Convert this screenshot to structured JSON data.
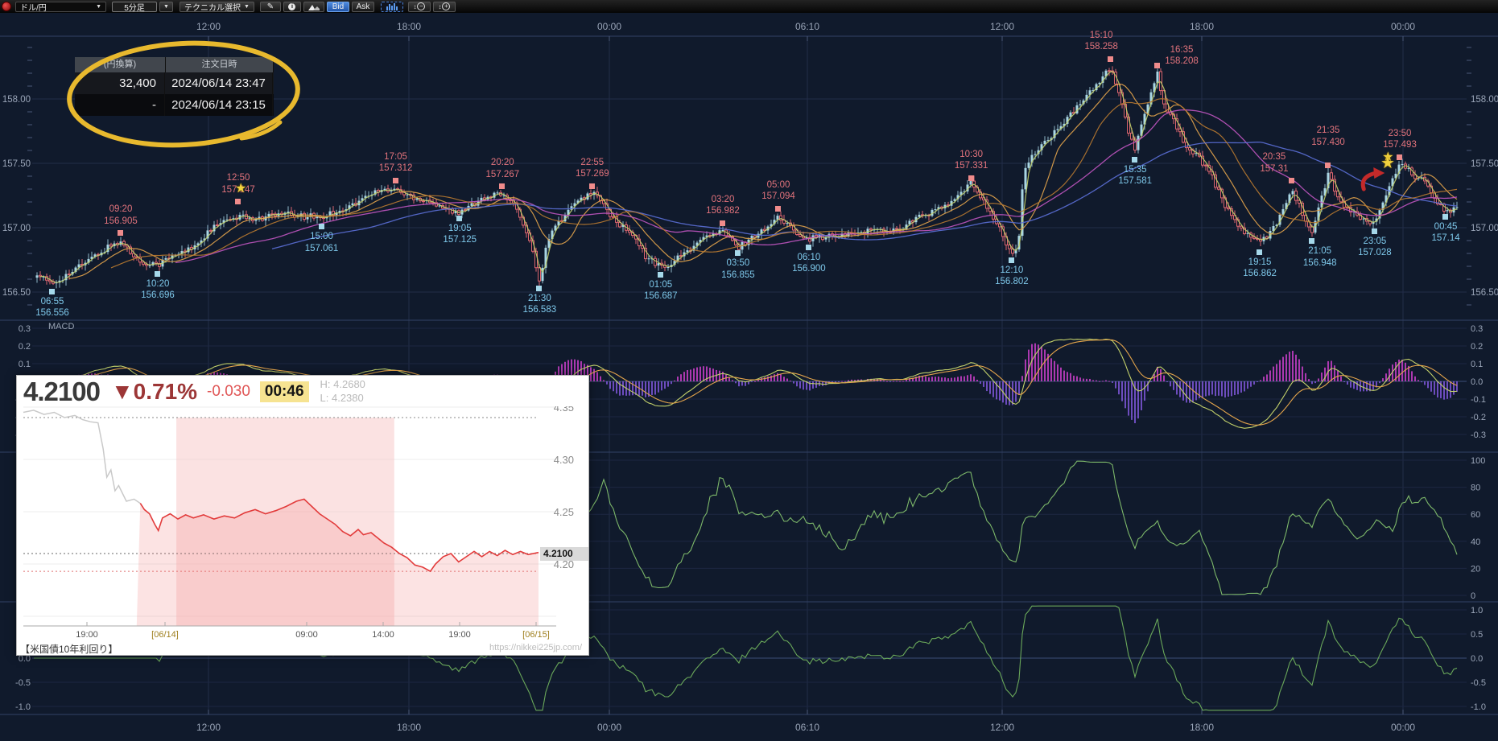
{
  "toolbar": {
    "pair_selector": "ドル/円",
    "timeframe": "5分足",
    "technical_button": "テクニカル選択",
    "bid_label": "Bid",
    "ask_label": "Ask",
    "icons": [
      "record-icon",
      "dropdown-arrow-icon",
      "pencil-icon",
      "info-icon",
      "area-chart-icon",
      "volume-bars-icon",
      "zoom-out-icon",
      "zoom-in-icon"
    ]
  },
  "order_panel": {
    "col1_header": "(円換算)",
    "col2_header": "注文日時",
    "rows": [
      {
        "amount": "32,400",
        "datetime": "2024/06/14 23:47"
      },
      {
        "amount": "-",
        "datetime": "2024/06/14 23:15"
      }
    ]
  },
  "panels": {
    "macd_label": "MACD",
    "time_labels": [
      "12:00",
      "18:00",
      "00:00",
      "06:10",
      "12:00",
      "18:00",
      "00:00"
    ],
    "main_price_ticks": [
      "158.00",
      "157.50",
      "157.00",
      "156.50"
    ],
    "macd_ticks": [
      "0.3",
      "0.2",
      "0.1",
      "0.0",
      "-0.1",
      "-0.2",
      "-0.3"
    ],
    "rsi_ticks": [
      "100",
      "80",
      "60",
      "40",
      "20",
      "0"
    ],
    "osc_ticks": [
      "1.0",
      "0.5",
      "0.0",
      "-0.5",
      "-1.0"
    ]
  },
  "colors": {
    "background": "#101a2c",
    "grid": "#222d49",
    "candle_up": "#a9d6e4",
    "candle_down": "#dd6670",
    "anno_high": "#e2737c",
    "anno_low": "#7ec8ea",
    "ma_fast": "#c2d06a",
    "ma_mid": "#e3a44b",
    "ma_slow_magenta": "#c055c0",
    "ma_slow_blue": "#5b6fd6",
    "ma_slow_brown": "#b97a30",
    "hist_pos": "#c840c8",
    "hist_neg": "#7e57d8",
    "osc_green": "#6aa85a",
    "scribble_yellow": "#e8b92e",
    "inset_red": "#e23b3b"
  },
  "chart_data": [
    {
      "type": "candlestick",
      "title": "ドル/円 5分足",
      "x_axis_labels": [
        "12:00",
        "18:00",
        "00:00",
        "06:10",
        "12:00",
        "18:00",
        "00:00"
      ],
      "y_axis_labels": [
        "158.00",
        "157.50",
        "157.00",
        "156.50"
      ],
      "ylim": [
        156.4,
        158.45
      ],
      "annotations": [
        {
          "t": "06:55",
          "v": "156.556",
          "side": "low",
          "f": 0.013
        },
        {
          "t": "09:20",
          "v": "156.905",
          "side": "high",
          "f": 0.061
        },
        {
          "t": "10:20",
          "v": "156.696",
          "side": "low",
          "f": 0.087
        },
        {
          "t": "12:50",
          "v": "157.147",
          "side": "high",
          "f": 0.1435,
          "star": true
        },
        {
          "t": "15:00",
          "v": "157.061",
          "side": "low",
          "f": 0.202
        },
        {
          "t": "17:05",
          "v": "157.312",
          "side": "high",
          "f": 0.254
        },
        {
          "t": "19:05",
          "v": "157.125",
          "side": "low",
          "f": 0.299
        },
        {
          "t": "20:20",
          "v": "157.267",
          "side": "high",
          "f": 0.329
        },
        {
          "t": "21:30",
          "v": "156.583",
          "side": "low",
          "f": 0.355
        },
        {
          "t": "22:55",
          "v": "157.269",
          "side": "high",
          "f": 0.392
        },
        {
          "t": "01:05",
          "v": "156.687",
          "side": "low",
          "f": 0.44
        },
        {
          "t": "03:20",
          "v": "156.982",
          "side": "high",
          "f": 0.4836
        },
        {
          "t": "03:50",
          "v": "156.855",
          "side": "low",
          "f": 0.4943
        },
        {
          "t": "05:00",
          "v": "157.094",
          "side": "high",
          "f": 0.5226
        },
        {
          "t": "06:10",
          "v": "156.900",
          "side": "low",
          "f": 0.544
        },
        {
          "t": "10:30",
          "v": "157.331",
          "side": "high",
          "f": 0.658
        },
        {
          "t": "12:10",
          "v": "156.802",
          "side": "low",
          "f": 0.6864
        },
        {
          "t": "15:10",
          "v": "158.258",
          "side": "high",
          "f": 0.756,
          "dx": -12
        },
        {
          "t": "15:35",
          "v": "157.581",
          "side": "low",
          "f": 0.773
        },
        {
          "t": "16:35",
          "v": "158.208",
          "side": "high",
          "f": 0.7887,
          "dx": 30,
          "dy": 10
        },
        {
          "t": "19:15",
          "v": "156.862",
          "side": "low",
          "f": 0.8605
        },
        {
          "t": "20:35",
          "v": "157.31",
          "side": "high",
          "f": 0.883,
          "dx": -22
        },
        {
          "t": "21:05",
          "v": "156.948",
          "side": "low",
          "f": 0.897,
          "dx": 10
        },
        {
          "t": "21:35",
          "v": "157.430",
          "side": "high",
          "f": 0.9085,
          "dy": -14
        },
        {
          "t": "23:05",
          "v": "157.028",
          "side": "low",
          "f": 0.9412
        },
        {
          "t": "23:50",
          "v": "157.493",
          "side": "high",
          "f": 0.9588,
          "star_left": true
        },
        {
          "t": "00:45",
          "v": "157.14",
          "side": "low",
          "f": 0.991
        }
      ],
      "path": [
        [
          0.0,
          156.62
        ],
        [
          0.013,
          156.556
        ],
        [
          0.03,
          156.7
        ],
        [
          0.045,
          156.78
        ],
        [
          0.061,
          156.905
        ],
        [
          0.075,
          156.74
        ],
        [
          0.087,
          156.696
        ],
        [
          0.1,
          156.8
        ],
        [
          0.115,
          156.88
        ],
        [
          0.13,
          157.02
        ],
        [
          0.1435,
          157.1
        ],
        [
          0.16,
          157.06
        ],
        [
          0.18,
          157.12
        ],
        [
          0.202,
          157.061
        ],
        [
          0.215,
          157.15
        ],
        [
          0.23,
          157.22
        ],
        [
          0.245,
          157.28
        ],
        [
          0.254,
          157.312
        ],
        [
          0.265,
          157.25
        ],
        [
          0.28,
          157.18
        ],
        [
          0.299,
          157.125
        ],
        [
          0.315,
          157.22
        ],
        [
          0.329,
          157.267
        ],
        [
          0.34,
          157.15
        ],
        [
          0.348,
          156.9
        ],
        [
          0.355,
          156.583
        ],
        [
          0.362,
          156.95
        ],
        [
          0.375,
          157.15
        ],
        [
          0.392,
          157.269
        ],
        [
          0.405,
          157.1
        ],
        [
          0.42,
          156.95
        ],
        [
          0.43,
          156.75
        ],
        [
          0.44,
          156.687
        ],
        [
          0.455,
          156.8
        ],
        [
          0.47,
          156.9
        ],
        [
          0.4836,
          156.982
        ],
        [
          0.4943,
          156.855
        ],
        [
          0.51,
          156.95
        ],
        [
          0.5226,
          157.094
        ],
        [
          0.535,
          156.98
        ],
        [
          0.544,
          156.9
        ],
        [
          0.565,
          156.95
        ],
        [
          0.585,
          156.96
        ],
        [
          0.605,
          157.0
        ],
        [
          0.625,
          157.08
        ],
        [
          0.64,
          157.18
        ],
        [
          0.658,
          157.331
        ],
        [
          0.67,
          157.15
        ],
        [
          0.6805,
          156.95
        ],
        [
          0.6864,
          156.802
        ],
        [
          0.691,
          156.85
        ],
        [
          0.695,
          157.45
        ],
        [
          0.705,
          157.6
        ],
        [
          0.72,
          157.8
        ],
        [
          0.735,
          157.95
        ],
        [
          0.745,
          158.1
        ],
        [
          0.756,
          158.258
        ],
        [
          0.762,
          158.05
        ],
        [
          0.768,
          157.75
        ],
        [
          0.773,
          157.581
        ],
        [
          0.78,
          157.9
        ],
        [
          0.7887,
          158.208
        ],
        [
          0.794,
          157.95
        ],
        [
          0.8,
          157.85
        ],
        [
          0.81,
          157.6
        ],
        [
          0.825,
          157.45
        ],
        [
          0.84,
          157.1
        ],
        [
          0.85,
          156.95
        ],
        [
          0.8605,
          156.862
        ],
        [
          0.872,
          157.05
        ],
        [
          0.883,
          157.31
        ],
        [
          0.89,
          157.1
        ],
        [
          0.897,
          156.948
        ],
        [
          0.903,
          157.2
        ],
        [
          0.9085,
          157.43
        ],
        [
          0.915,
          157.25
        ],
        [
          0.925,
          157.1
        ],
        [
          0.933,
          157.05
        ],
        [
          0.9412,
          157.028
        ],
        [
          0.948,
          157.25
        ],
        [
          0.9588,
          157.493
        ],
        [
          0.968,
          157.4
        ],
        [
          0.975,
          157.35
        ],
        [
          0.983,
          157.25
        ],
        [
          0.991,
          157.14
        ],
        [
          1.0,
          157.16
        ]
      ],
      "decorations": [
        {
          "type": "star",
          "f": 0.9497,
          "price": 157.51
        },
        {
          "type": "curved-arrow",
          "f": 0.938,
          "price": 157.4
        }
      ]
    },
    {
      "type": "area-line",
      "title": "【米国債10年利回り】",
      "watermark": "https://nikkei225jp.com/",
      "last": "4.2100",
      "change_pct": "▼0.71%",
      "change": "-0.030",
      "time": "00:46",
      "high": "H: 4.2680",
      "low": "L: 4.2380",
      "price_tag": "4.2100",
      "y_ticks": [
        "4.35",
        "4.30",
        "4.25",
        "4.20"
      ],
      "x_ticks": [
        "19:00",
        "[06/14]",
        "09:00",
        "14:00",
        "19:00",
        "[06/15]"
      ],
      "gray_until": 0.23,
      "band": [
        0.297,
        0.72
      ],
      "points": [
        [
          0.0,
          4.345
        ],
        [
          0.02,
          4.347
        ],
        [
          0.04,
          4.343
        ],
        [
          0.06,
          4.345
        ],
        [
          0.08,
          4.34
        ],
        [
          0.1,
          4.342
        ],
        [
          0.115,
          4.338
        ],
        [
          0.13,
          4.336
        ],
        [
          0.145,
          4.335
        ],
        [
          0.155,
          4.31
        ],
        [
          0.162,
          4.283
        ],
        [
          0.17,
          4.29
        ],
        [
          0.178,
          4.27
        ],
        [
          0.185,
          4.275
        ],
        [
          0.2,
          4.26
        ],
        [
          0.215,
          4.262
        ],
        [
          0.227,
          4.258
        ],
        [
          0.235,
          4.252
        ],
        [
          0.245,
          4.248
        ],
        [
          0.255,
          4.238
        ],
        [
          0.262,
          4.232
        ],
        [
          0.27,
          4.244
        ],
        [
          0.285,
          4.248
        ],
        [
          0.3,
          4.243
        ],
        [
          0.315,
          4.247
        ],
        [
          0.33,
          4.244
        ],
        [
          0.35,
          4.247
        ],
        [
          0.37,
          4.243
        ],
        [
          0.39,
          4.246
        ],
        [
          0.41,
          4.244
        ],
        [
          0.43,
          4.249
        ],
        [
          0.45,
          4.252
        ],
        [
          0.47,
          4.248
        ],
        [
          0.49,
          4.251
        ],
        [
          0.51,
          4.255
        ],
        [
          0.53,
          4.26
        ],
        [
          0.545,
          4.262
        ],
        [
          0.56,
          4.255
        ],
        [
          0.575,
          4.248
        ],
        [
          0.59,
          4.243
        ],
        [
          0.605,
          4.238
        ],
        [
          0.62,
          4.231
        ],
        [
          0.635,
          4.227
        ],
        [
          0.65,
          4.233
        ],
        [
          0.66,
          4.228
        ],
        [
          0.675,
          4.23
        ],
        [
          0.69,
          4.224
        ],
        [
          0.7,
          4.22
        ],
        [
          0.715,
          4.216
        ],
        [
          0.73,
          4.21
        ],
        [
          0.745,
          4.206
        ],
        [
          0.76,
          4.199
        ],
        [
          0.775,
          4.197
        ],
        [
          0.79,
          4.193
        ],
        [
          0.8,
          4.2
        ],
        [
          0.815,
          4.207
        ],
        [
          0.83,
          4.21
        ],
        [
          0.845,
          4.202
        ],
        [
          0.86,
          4.207
        ],
        [
          0.875,
          4.212
        ],
        [
          0.89,
          4.207
        ],
        [
          0.905,
          4.212
        ],
        [
          0.92,
          4.208
        ],
        [
          0.935,
          4.213
        ],
        [
          0.95,
          4.209
        ],
        [
          0.965,
          4.212
        ],
        [
          0.98,
          4.209
        ],
        [
          1.0,
          4.211
        ]
      ]
    }
  ]
}
